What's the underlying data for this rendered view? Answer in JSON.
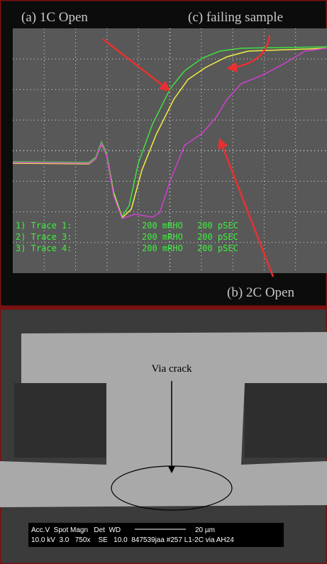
{
  "scope": {
    "labels": {
      "a": "(a) 1C Open",
      "c": "(c) failing sample",
      "b": "(b) 2C Open"
    },
    "legend": [
      {
        "trace": "1) Trace 1:",
        "scale": "200 mRHO",
        "time": "200 pSEC"
      },
      {
        "trace": "2) Trace 3:",
        "scale": "200 mRHO",
        "time": "200 pSEC"
      },
      {
        "trace": "3) Trace 4:",
        "scale": "200 mRHO",
        "time": "200 pSEC"
      }
    ]
  },
  "sem": {
    "annotation": "Via crack",
    "info": {
      "header": "Acc.V  Spot Magn   Det  WD",
      "scale_bar": "20 µm",
      "values": "10.0 kV  3.0   750x    SE   10.0  847539jaa #257 L1-2C via AH24"
    }
  }
}
